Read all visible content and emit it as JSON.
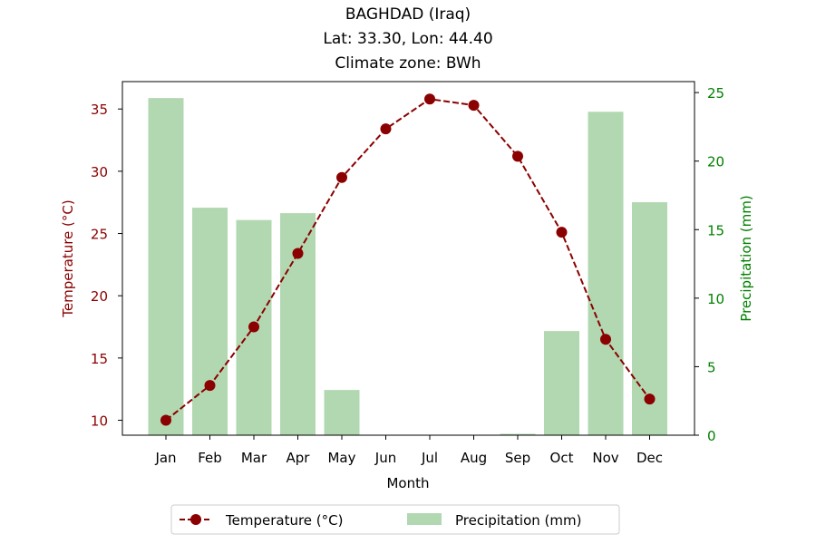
{
  "chart_data": {
    "type": "bar+line",
    "title_lines": [
      "BAGHDAD (Iraq)",
      "Lat: 33.30, Lon: 44.40",
      "Climate zone: BWh"
    ],
    "xlabel": "Month",
    "ylabel_left": "Temperature (°C)",
    "ylabel_right": "Precipitation (mm)",
    "categories": [
      "Jan",
      "Feb",
      "Mar",
      "Apr",
      "May",
      "Jun",
      "Jul",
      "Aug",
      "Sep",
      "Oct",
      "Nov",
      "Dec"
    ],
    "temperature": {
      "name": "Temperature (°C)",
      "values": [
        10.0,
        12.8,
        17.5,
        23.4,
        29.5,
        33.4,
        35.8,
        35.3,
        31.2,
        25.1,
        16.5,
        11.7
      ],
      "color": "#8b0000"
    },
    "precipitation": {
      "name": "Precipitation (mm)",
      "values": [
        24.6,
        16.6,
        15.7,
        16.2,
        3.3,
        0.0,
        0.0,
        0.0,
        0.1,
        7.6,
        23.6,
        17.0
      ],
      "color": "#b2d8b2"
    },
    "ylim_left": [
      8.8,
      37.2
    ],
    "ylim_right": [
      0,
      25.8
    ],
    "yticks_left": [
      10,
      15,
      20,
      25,
      30,
      35
    ],
    "yticks_right": [
      0,
      5,
      10,
      15,
      20,
      25
    ],
    "left_axis_color": "#8b0000",
    "right_axis_color": "#008000",
    "legend_position": "bottom-center",
    "grid": false
  }
}
